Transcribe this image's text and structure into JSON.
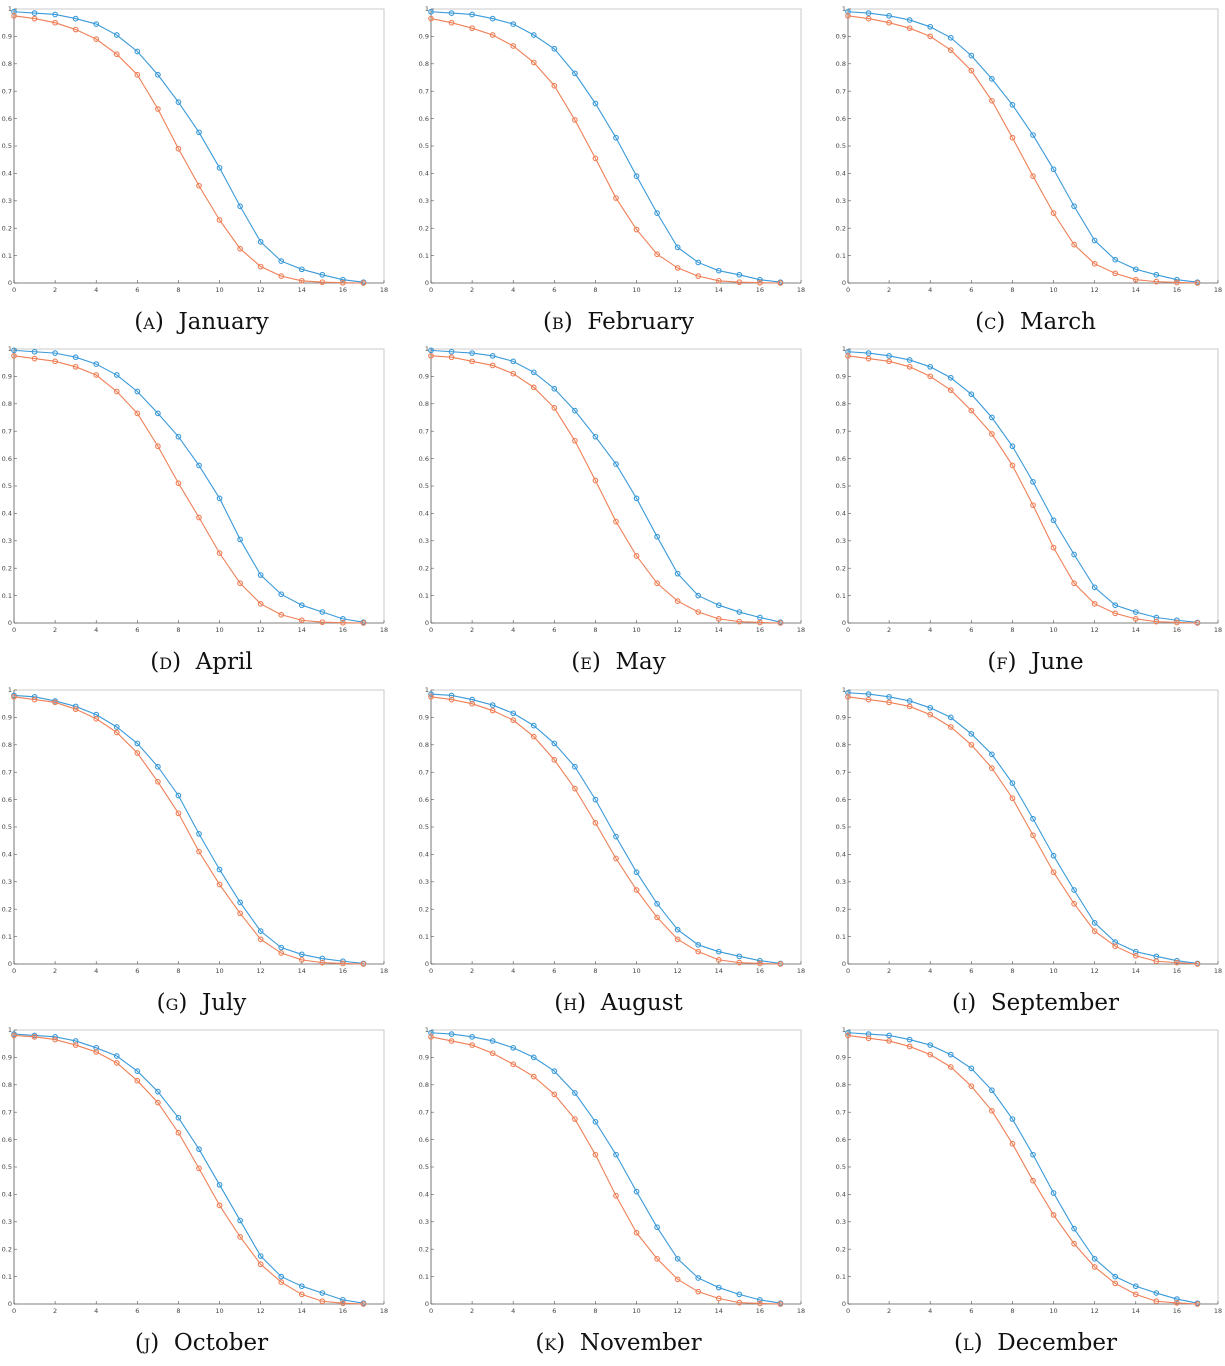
{
  "colors": {
    "series1": "#3a9ad9",
    "series2": "#ef7f56",
    "axis": "#555555",
    "frame": "#bbbbbb"
  },
  "axes": {
    "xlim": [
      0,
      18
    ],
    "ylim": [
      0,
      1
    ],
    "xticks": [
      "0",
      "2",
      "4",
      "6",
      "8",
      "10",
      "12",
      "14",
      "16",
      "18"
    ],
    "yticks": [
      "0",
      "0.1",
      "0.2",
      "0.3",
      "0.4",
      "0.5",
      "0.6",
      "0.7",
      "0.8",
      "0.9",
      "1"
    ]
  },
  "chart_data": [
    {
      "type": "line",
      "caption_label": "(a)",
      "caption_text": "January",
      "x": [
        0,
        1,
        2,
        3,
        4,
        5,
        6,
        7,
        8,
        9,
        10,
        11,
        12,
        13,
        14,
        15,
        16,
        17
      ],
      "series": [
        {
          "values": [
            0.99,
            0.985,
            0.98,
            0.965,
            0.945,
            0.905,
            0.845,
            0.76,
            0.66,
            0.55,
            0.42,
            0.28,
            0.15,
            0.08,
            0.05,
            0.03,
            0.012,
            0.003
          ]
        },
        {
          "values": [
            0.975,
            0.965,
            0.95,
            0.925,
            0.89,
            0.835,
            0.76,
            0.635,
            0.49,
            0.355,
            0.23,
            0.125,
            0.06,
            0.025,
            0.008,
            0.003,
            0.001,
            0.0
          ]
        }
      ]
    },
    {
      "type": "line",
      "caption_label": "(b)",
      "caption_text": "February",
      "x": [
        0,
        1,
        2,
        3,
        4,
        5,
        6,
        7,
        8,
        9,
        10,
        11,
        12,
        13,
        14,
        15,
        16,
        17
      ],
      "series": [
        {
          "values": [
            0.99,
            0.985,
            0.98,
            0.965,
            0.945,
            0.905,
            0.855,
            0.765,
            0.655,
            0.53,
            0.39,
            0.255,
            0.13,
            0.075,
            0.045,
            0.03,
            0.012,
            0.003
          ]
        },
        {
          "values": [
            0.965,
            0.95,
            0.93,
            0.905,
            0.865,
            0.805,
            0.72,
            0.595,
            0.455,
            0.31,
            0.195,
            0.105,
            0.055,
            0.025,
            0.008,
            0.003,
            0.001,
            0.0
          ]
        }
      ]
    },
    {
      "type": "line",
      "caption_label": "(c)",
      "caption_text": "March",
      "x": [
        0,
        1,
        2,
        3,
        4,
        5,
        6,
        7,
        8,
        9,
        10,
        11,
        12,
        13,
        14,
        15,
        16,
        17
      ],
      "series": [
        {
          "values": [
            0.99,
            0.985,
            0.975,
            0.96,
            0.935,
            0.895,
            0.83,
            0.745,
            0.65,
            0.54,
            0.415,
            0.28,
            0.155,
            0.085,
            0.05,
            0.03,
            0.012,
            0.003
          ]
        },
        {
          "values": [
            0.975,
            0.965,
            0.95,
            0.93,
            0.9,
            0.85,
            0.775,
            0.665,
            0.53,
            0.39,
            0.255,
            0.14,
            0.07,
            0.035,
            0.012,
            0.005,
            0.002,
            0.0
          ]
        }
      ]
    },
    {
      "type": "line",
      "caption_label": "(d)",
      "caption_text": "April",
      "x": [
        0,
        1,
        2,
        3,
        4,
        5,
        6,
        7,
        8,
        9,
        10,
        11,
        12,
        13,
        14,
        15,
        16,
        17
      ],
      "series": [
        {
          "values": [
            0.995,
            0.99,
            0.985,
            0.97,
            0.945,
            0.905,
            0.845,
            0.765,
            0.68,
            0.575,
            0.455,
            0.305,
            0.175,
            0.105,
            0.065,
            0.04,
            0.015,
            0.003
          ]
        },
        {
          "values": [
            0.975,
            0.965,
            0.955,
            0.935,
            0.905,
            0.845,
            0.765,
            0.645,
            0.51,
            0.385,
            0.255,
            0.145,
            0.07,
            0.03,
            0.01,
            0.003,
            0.001,
            0.0
          ]
        }
      ]
    },
    {
      "type": "line",
      "caption_label": "(e)",
      "caption_text": "May",
      "x": [
        0,
        1,
        2,
        3,
        4,
        5,
        6,
        7,
        8,
        9,
        10,
        11,
        12,
        13,
        14,
        15,
        16,
        17
      ],
      "series": [
        {
          "values": [
            0.995,
            0.99,
            0.985,
            0.975,
            0.955,
            0.915,
            0.855,
            0.775,
            0.68,
            0.58,
            0.455,
            0.315,
            0.18,
            0.1,
            0.065,
            0.04,
            0.02,
            0.003
          ]
        },
        {
          "values": [
            0.975,
            0.97,
            0.955,
            0.94,
            0.91,
            0.86,
            0.785,
            0.665,
            0.52,
            0.37,
            0.245,
            0.145,
            0.08,
            0.04,
            0.015,
            0.005,
            0.002,
            0.0
          ]
        }
      ]
    },
    {
      "type": "line",
      "caption_label": "(f)",
      "caption_text": "June",
      "x": [
        0,
        1,
        2,
        3,
        4,
        5,
        6,
        7,
        8,
        9,
        10,
        11,
        12,
        13,
        14,
        15,
        16,
        17
      ],
      "series": [
        {
          "values": [
            0.99,
            0.985,
            0.975,
            0.96,
            0.935,
            0.895,
            0.835,
            0.75,
            0.645,
            0.515,
            0.375,
            0.25,
            0.13,
            0.065,
            0.04,
            0.02,
            0.01,
            0.002
          ]
        },
        {
          "values": [
            0.975,
            0.965,
            0.955,
            0.935,
            0.9,
            0.85,
            0.775,
            0.69,
            0.575,
            0.43,
            0.275,
            0.145,
            0.07,
            0.035,
            0.015,
            0.005,
            0.002,
            0.0
          ]
        }
      ]
    },
    {
      "type": "line",
      "caption_label": "(g)",
      "caption_text": "July",
      "x": [
        0,
        1,
        2,
        3,
        4,
        5,
        6,
        7,
        8,
        9,
        10,
        11,
        12,
        13,
        14,
        15,
        16,
        17
      ],
      "series": [
        {
          "values": [
            0.98,
            0.975,
            0.96,
            0.94,
            0.91,
            0.865,
            0.805,
            0.72,
            0.615,
            0.475,
            0.345,
            0.225,
            0.12,
            0.06,
            0.035,
            0.02,
            0.01,
            0.002
          ]
        },
        {
          "values": [
            0.975,
            0.965,
            0.955,
            0.93,
            0.895,
            0.845,
            0.77,
            0.665,
            0.55,
            0.41,
            0.29,
            0.185,
            0.09,
            0.04,
            0.015,
            0.005,
            0.002,
            0.0
          ]
        }
      ]
    },
    {
      "type": "line",
      "caption_label": "(h)",
      "caption_text": "August",
      "x": [
        0,
        1,
        2,
        3,
        4,
        5,
        6,
        7,
        8,
        9,
        10,
        11,
        12,
        13,
        14,
        15,
        16,
        17
      ],
      "series": [
        {
          "values": [
            0.985,
            0.98,
            0.965,
            0.945,
            0.915,
            0.87,
            0.805,
            0.72,
            0.6,
            0.465,
            0.335,
            0.22,
            0.125,
            0.07,
            0.045,
            0.028,
            0.012,
            0.002
          ]
        },
        {
          "values": [
            0.975,
            0.965,
            0.95,
            0.925,
            0.89,
            0.83,
            0.745,
            0.64,
            0.515,
            0.385,
            0.27,
            0.17,
            0.09,
            0.045,
            0.015,
            0.005,
            0.002,
            0.0
          ]
        }
      ]
    },
    {
      "type": "line",
      "caption_label": "(i)",
      "caption_text": "September",
      "x": [
        0,
        1,
        2,
        3,
        4,
        5,
        6,
        7,
        8,
        9,
        10,
        11,
        12,
        13,
        14,
        15,
        16,
        17
      ],
      "series": [
        {
          "values": [
            0.99,
            0.985,
            0.975,
            0.96,
            0.935,
            0.9,
            0.84,
            0.765,
            0.66,
            0.53,
            0.395,
            0.27,
            0.15,
            0.08,
            0.045,
            0.028,
            0.012,
            0.002
          ]
        },
        {
          "values": [
            0.975,
            0.965,
            0.955,
            0.94,
            0.91,
            0.865,
            0.8,
            0.715,
            0.605,
            0.47,
            0.335,
            0.22,
            0.12,
            0.065,
            0.03,
            0.01,
            0.005,
            0.0
          ]
        }
      ]
    },
    {
      "type": "line",
      "caption_label": "(j)",
      "caption_text": "October",
      "x": [
        0,
        1,
        2,
        3,
        4,
        5,
        6,
        7,
        8,
        9,
        10,
        11,
        12,
        13,
        14,
        15,
        16,
        17
      ],
      "series": [
        {
          "values": [
            0.985,
            0.98,
            0.975,
            0.96,
            0.935,
            0.905,
            0.85,
            0.775,
            0.68,
            0.565,
            0.435,
            0.305,
            0.175,
            0.1,
            0.065,
            0.04,
            0.015,
            0.003
          ]
        },
        {
          "values": [
            0.98,
            0.975,
            0.965,
            0.945,
            0.92,
            0.88,
            0.815,
            0.735,
            0.625,
            0.495,
            0.36,
            0.245,
            0.145,
            0.08,
            0.035,
            0.01,
            0.003,
            0.0
          ]
        }
      ]
    },
    {
      "type": "line",
      "caption_label": "(k)",
      "caption_text": "November",
      "x": [
        0,
        1,
        2,
        3,
        4,
        5,
        6,
        7,
        8,
        9,
        10,
        11,
        12,
        13,
        14,
        15,
        16,
        17
      ],
      "series": [
        {
          "values": [
            0.99,
            0.985,
            0.975,
            0.96,
            0.935,
            0.9,
            0.85,
            0.77,
            0.665,
            0.545,
            0.41,
            0.28,
            0.165,
            0.095,
            0.06,
            0.035,
            0.015,
            0.003
          ]
        },
        {
          "values": [
            0.975,
            0.96,
            0.945,
            0.915,
            0.875,
            0.83,
            0.765,
            0.675,
            0.545,
            0.395,
            0.26,
            0.165,
            0.09,
            0.045,
            0.02,
            0.005,
            0.002,
            0.0
          ]
        }
      ]
    },
    {
      "type": "line",
      "caption_label": "(l)",
      "caption_text": "December",
      "x": [
        0,
        1,
        2,
        3,
        4,
        5,
        6,
        7,
        8,
        9,
        10,
        11,
        12,
        13,
        14,
        15,
        16,
        17
      ],
      "series": [
        {
          "values": [
            0.99,
            0.985,
            0.98,
            0.965,
            0.945,
            0.91,
            0.86,
            0.78,
            0.675,
            0.545,
            0.405,
            0.275,
            0.165,
            0.1,
            0.065,
            0.04,
            0.018,
            0.003
          ]
        },
        {
          "values": [
            0.98,
            0.97,
            0.96,
            0.94,
            0.91,
            0.865,
            0.795,
            0.705,
            0.585,
            0.45,
            0.325,
            0.22,
            0.135,
            0.075,
            0.035,
            0.01,
            0.004,
            0.0
          ]
        }
      ]
    }
  ]
}
